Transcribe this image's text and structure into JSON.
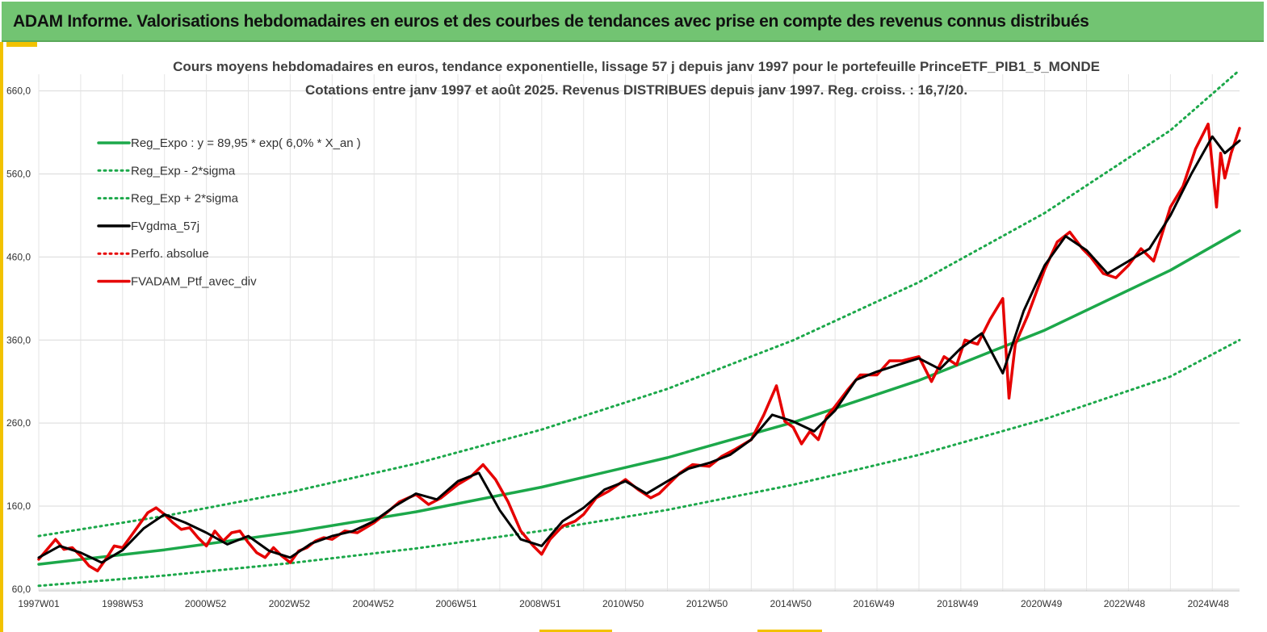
{
  "banner": {
    "title": "ADAM Informe. Valorisations hebdomadaires en euros et des courbes de tendances avec prise en compte des revenus connus distribués"
  },
  "colors": {
    "banner_bg": "#72c472",
    "accent": "#f2c200",
    "trend": "#1ca84a",
    "smooth": "#000000",
    "perf": "#e60000"
  },
  "chart_data": {
    "type": "line",
    "title": [
      "Cours moyens hebdomadaires  en euros, tendance exponentielle, lissage 57 j depuis janv 1997 pour le portefeuille PrinceETF_PIB1_5_MONDE",
      "Cotations  entre janv 1997 et août 2025. Revenus DISTRIBUES depuis janv 1997. Reg. croiss. : 16,7/20."
    ],
    "xlabel": "",
    "ylabel": "",
    "x_range": [
      1997.0,
      2025.65
    ],
    "ylim": [
      58,
      680
    ],
    "y_ticks": [
      "60,0",
      "160,0",
      "260,0",
      "360,0",
      "460,0",
      "560,0",
      "660,0"
    ],
    "x_ticks": [
      "1997W01",
      "1998W53",
      "2000W52",
      "2002W52",
      "2004W52",
      "2006W51",
      "2008W51",
      "2010W50",
      "2012W50",
      "2014W50",
      "2016W49",
      "2018W49",
      "2020W49",
      "2022W48",
      "2024W48"
    ],
    "grid": true,
    "legend_position": "top-left",
    "legend": [
      {
        "label": "Reg_Expo : y = 89,95 * exp( 6,0% *  X_an )",
        "style": "solid",
        "color": "#1ca84a"
      },
      {
        "label": "Reg_Exp - 2*sigma",
        "style": "dotted",
        "color": "#1ca84a"
      },
      {
        "label": "Reg_Exp + 2*sigma",
        "style": "dotted",
        "color": "#1ca84a"
      },
      {
        "label": "FVgdma_57j",
        "style": "solid",
        "color": "#000000"
      },
      {
        "label": "Perfo. absolue",
        "style": "dotted",
        "color": "#e60000"
      },
      {
        "label": "FVADAM_Ptf_avec_div",
        "style": "solid",
        "color": "#e60000"
      }
    ],
    "series": [
      {
        "name": "Reg_Expo : y = 89,95 * exp( 6,0% *  X_an )",
        "x": [
          1997.0,
          2000.0,
          2003.0,
          2006.0,
          2009.0,
          2012.0,
          2015.0,
          2018.0,
          2021.0,
          2024.0,
          2025.65
        ],
        "y": [
          89.95,
          107.4,
          128.3,
          153.1,
          182.9,
          218.4,
          260.8,
          311.4,
          371.8,
          444.0,
          491.5
        ]
      },
      {
        "name": "Reg_Exp - 2*sigma",
        "x": [
          1997.0,
          2000.0,
          2003.0,
          2006.0,
          2009.0,
          2012.0,
          2015.0,
          2018.0,
          2021.0,
          2024.0,
          2025.65
        ],
        "y": [
          64.0,
          76.4,
          91.3,
          109.0,
          130.2,
          155.5,
          185.7,
          221.7,
          264.7,
          316.0,
          360.0
        ]
      },
      {
        "name": "Reg_Exp + 2*sigma",
        "x": [
          1997.0,
          2000.0,
          2003.0,
          2006.0,
          2009.0,
          2012.0,
          2015.0,
          2018.0,
          2021.0,
          2024.0,
          2025.65
        ],
        "y": [
          124.0,
          148.1,
          176.9,
          211.2,
          252.2,
          301.2,
          359.7,
          429.5,
          512.9,
          612.5,
          685.0
        ]
      },
      {
        "name": "FVgdma_57j",
        "x": [
          1997.0,
          1997.5,
          1998.0,
          1998.5,
          1999.0,
          1999.5,
          2000.0,
          2000.5,
          2001.0,
          2001.5,
          2002.0,
          2002.5,
          2003.0,
          2003.5,
          2004.0,
          2004.5,
          2005.0,
          2005.5,
          2006.0,
          2006.5,
          2007.0,
          2007.5,
          2008.0,
          2008.5,
          2009.0,
          2009.5,
          2010.0,
          2010.5,
          2011.0,
          2011.5,
          2012.0,
          2012.5,
          2013.0,
          2013.5,
          2014.0,
          2014.5,
          2015.0,
          2015.5,
          2016.0,
          2016.5,
          2017.0,
          2017.5,
          2018.0,
          2018.5,
          2019.0,
          2019.5,
          2020.0,
          2020.5,
          2021.0,
          2021.5,
          2022.0,
          2022.5,
          2023.0,
          2023.5,
          2024.0,
          2024.5,
          2025.0,
          2025.3,
          2025.65
        ],
        "y": [
          98,
          112,
          104,
          92,
          107,
          133,
          150,
          140,
          128,
          114,
          124,
          106,
          98,
          115,
          124,
          130,
          142,
          160,
          175,
          168,
          190,
          200,
          155,
          120,
          112,
          142,
          158,
          180,
          190,
          175,
          190,
          205,
          212,
          222,
          240,
          270,
          262,
          250,
          275,
          312,
          322,
          330,
          338,
          325,
          350,
          368,
          320,
          395,
          450,
          485,
          468,
          440,
          455,
          470,
          510,
          560,
          605,
          585,
          600
        ]
      },
      {
        "name": "FVADAM_Ptf_avec_div",
        "x": [
          1997.0,
          1997.2,
          1997.4,
          1997.6,
          1997.8,
          1998.0,
          1998.2,
          1998.4,
          1998.6,
          1998.8,
          1999.0,
          1999.2,
          1999.4,
          1999.6,
          1999.8,
          2000.0,
          2000.2,
          2000.4,
          2000.6,
          2000.8,
          2001.0,
          2001.2,
          2001.4,
          2001.6,
          2001.8,
          2002.0,
          2002.2,
          2002.4,
          2002.6,
          2002.8,
          2003.0,
          2003.2,
          2003.4,
          2003.6,
          2003.8,
          2004.0,
          2004.3,
          2004.6,
          2005.0,
          2005.3,
          2005.6,
          2006.0,
          2006.3,
          2006.6,
          2007.0,
          2007.3,
          2007.6,
          2007.9,
          2008.2,
          2008.5,
          2008.8,
          2009.0,
          2009.2,
          2009.5,
          2009.8,
          2010.0,
          2010.3,
          2010.6,
          2011.0,
          2011.3,
          2011.6,
          2011.8,
          2012.0,
          2012.3,
          2012.6,
          2013.0,
          2013.3,
          2013.6,
          2014.0,
          2014.3,
          2014.6,
          2014.8,
          2015.0,
          2015.2,
          2015.4,
          2015.6,
          2015.8,
          2016.0,
          2016.3,
          2016.6,
          2017.0,
          2017.3,
          2017.6,
          2018.0,
          2018.3,
          2018.6,
          2018.9,
          2019.1,
          2019.4,
          2019.7,
          2020.0,
          2020.15,
          2020.3,
          2020.6,
          2021.0,
          2021.3,
          2021.6,
          2021.9,
          2022.1,
          2022.4,
          2022.7,
          2023.0,
          2023.3,
          2023.6,
          2024.0,
          2024.3,
          2024.6,
          2024.9,
          2025.1,
          2025.2,
          2025.3,
          2025.45,
          2025.65
        ],
        "y": [
          96,
          108,
          120,
          108,
          110,
          100,
          88,
          82,
          96,
          112,
          110,
          124,
          138,
          152,
          158,
          150,
          140,
          132,
          134,
          122,
          112,
          130,
          118,
          128,
          130,
          116,
          104,
          98,
          110,
          100,
          92,
          106,
          110,
          118,
          122,
          120,
          130,
          128,
          140,
          152,
          165,
          174,
          162,
          170,
          186,
          195,
          210,
          192,
          165,
          130,
          112,
          102,
          120,
          136,
          142,
          150,
          170,
          178,
          192,
          180,
          170,
          175,
          185,
          200,
          210,
          208,
          220,
          228,
          240,
          270,
          305,
          262,
          255,
          235,
          250,
          240,
          268,
          280,
          300,
          318,
          318,
          335,
          335,
          340,
          310,
          340,
          330,
          360,
          355,
          385,
          410,
          290,
          355,
          390,
          445,
          478,
          490,
          470,
          460,
          440,
          435,
          450,
          470,
          455,
          520,
          545,
          590,
          620,
          520,
          585,
          555,
          585,
          615
        ]
      }
    ]
  }
}
